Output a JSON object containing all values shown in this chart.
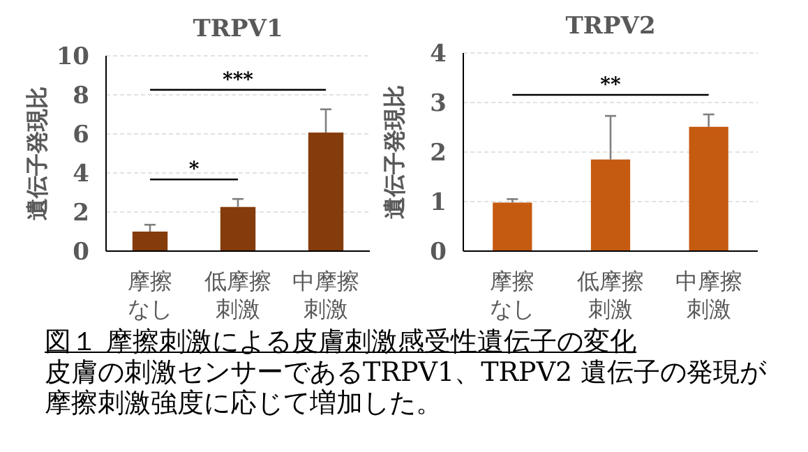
{
  "chart_data": [
    {
      "type": "bar",
      "title": "TRPV1",
      "ylabel": "遺伝子発現比",
      "categories": [
        "摩擦なし",
        "低摩擦刺激",
        "中摩擦刺激"
      ],
      "values": [
        1.0,
        2.26,
        6.07
      ],
      "errors": [
        0.35,
        0.41,
        1.19
      ],
      "color": "#843c0c",
      "ylim": [
        0,
        10
      ],
      "yticks": [
        0,
        2,
        4,
        6,
        8,
        10
      ],
      "grid": "y",
      "annotations": [
        "*",
        "***"
      ]
    },
    {
      "type": "bar",
      "title": "TRPV2",
      "ylabel": "遺伝子発現比",
      "categories": [
        "摩擦なし",
        "低摩擦刺激",
        "中摩擦刺激"
      ],
      "values": [
        0.98,
        1.85,
        2.51
      ],
      "errors": [
        0.07,
        0.88,
        0.25
      ],
      "color": "#c55a11",
      "ylim": [
        0,
        4
      ],
      "yticks": [
        0,
        1,
        2,
        3,
        4
      ],
      "grid": "y",
      "annotations": [
        "**"
      ]
    },
    {
      "type": "other",
      "title": "図１  摩擦刺激による皮膚刺激感受性遺伝子の変化",
      "annotations": [
        "皮膚の刺激センサーであるTRPV1、TRPV2  遺伝子の発現が摩擦刺激強度に応じて増加した。"
      ]
    }
  ]
}
